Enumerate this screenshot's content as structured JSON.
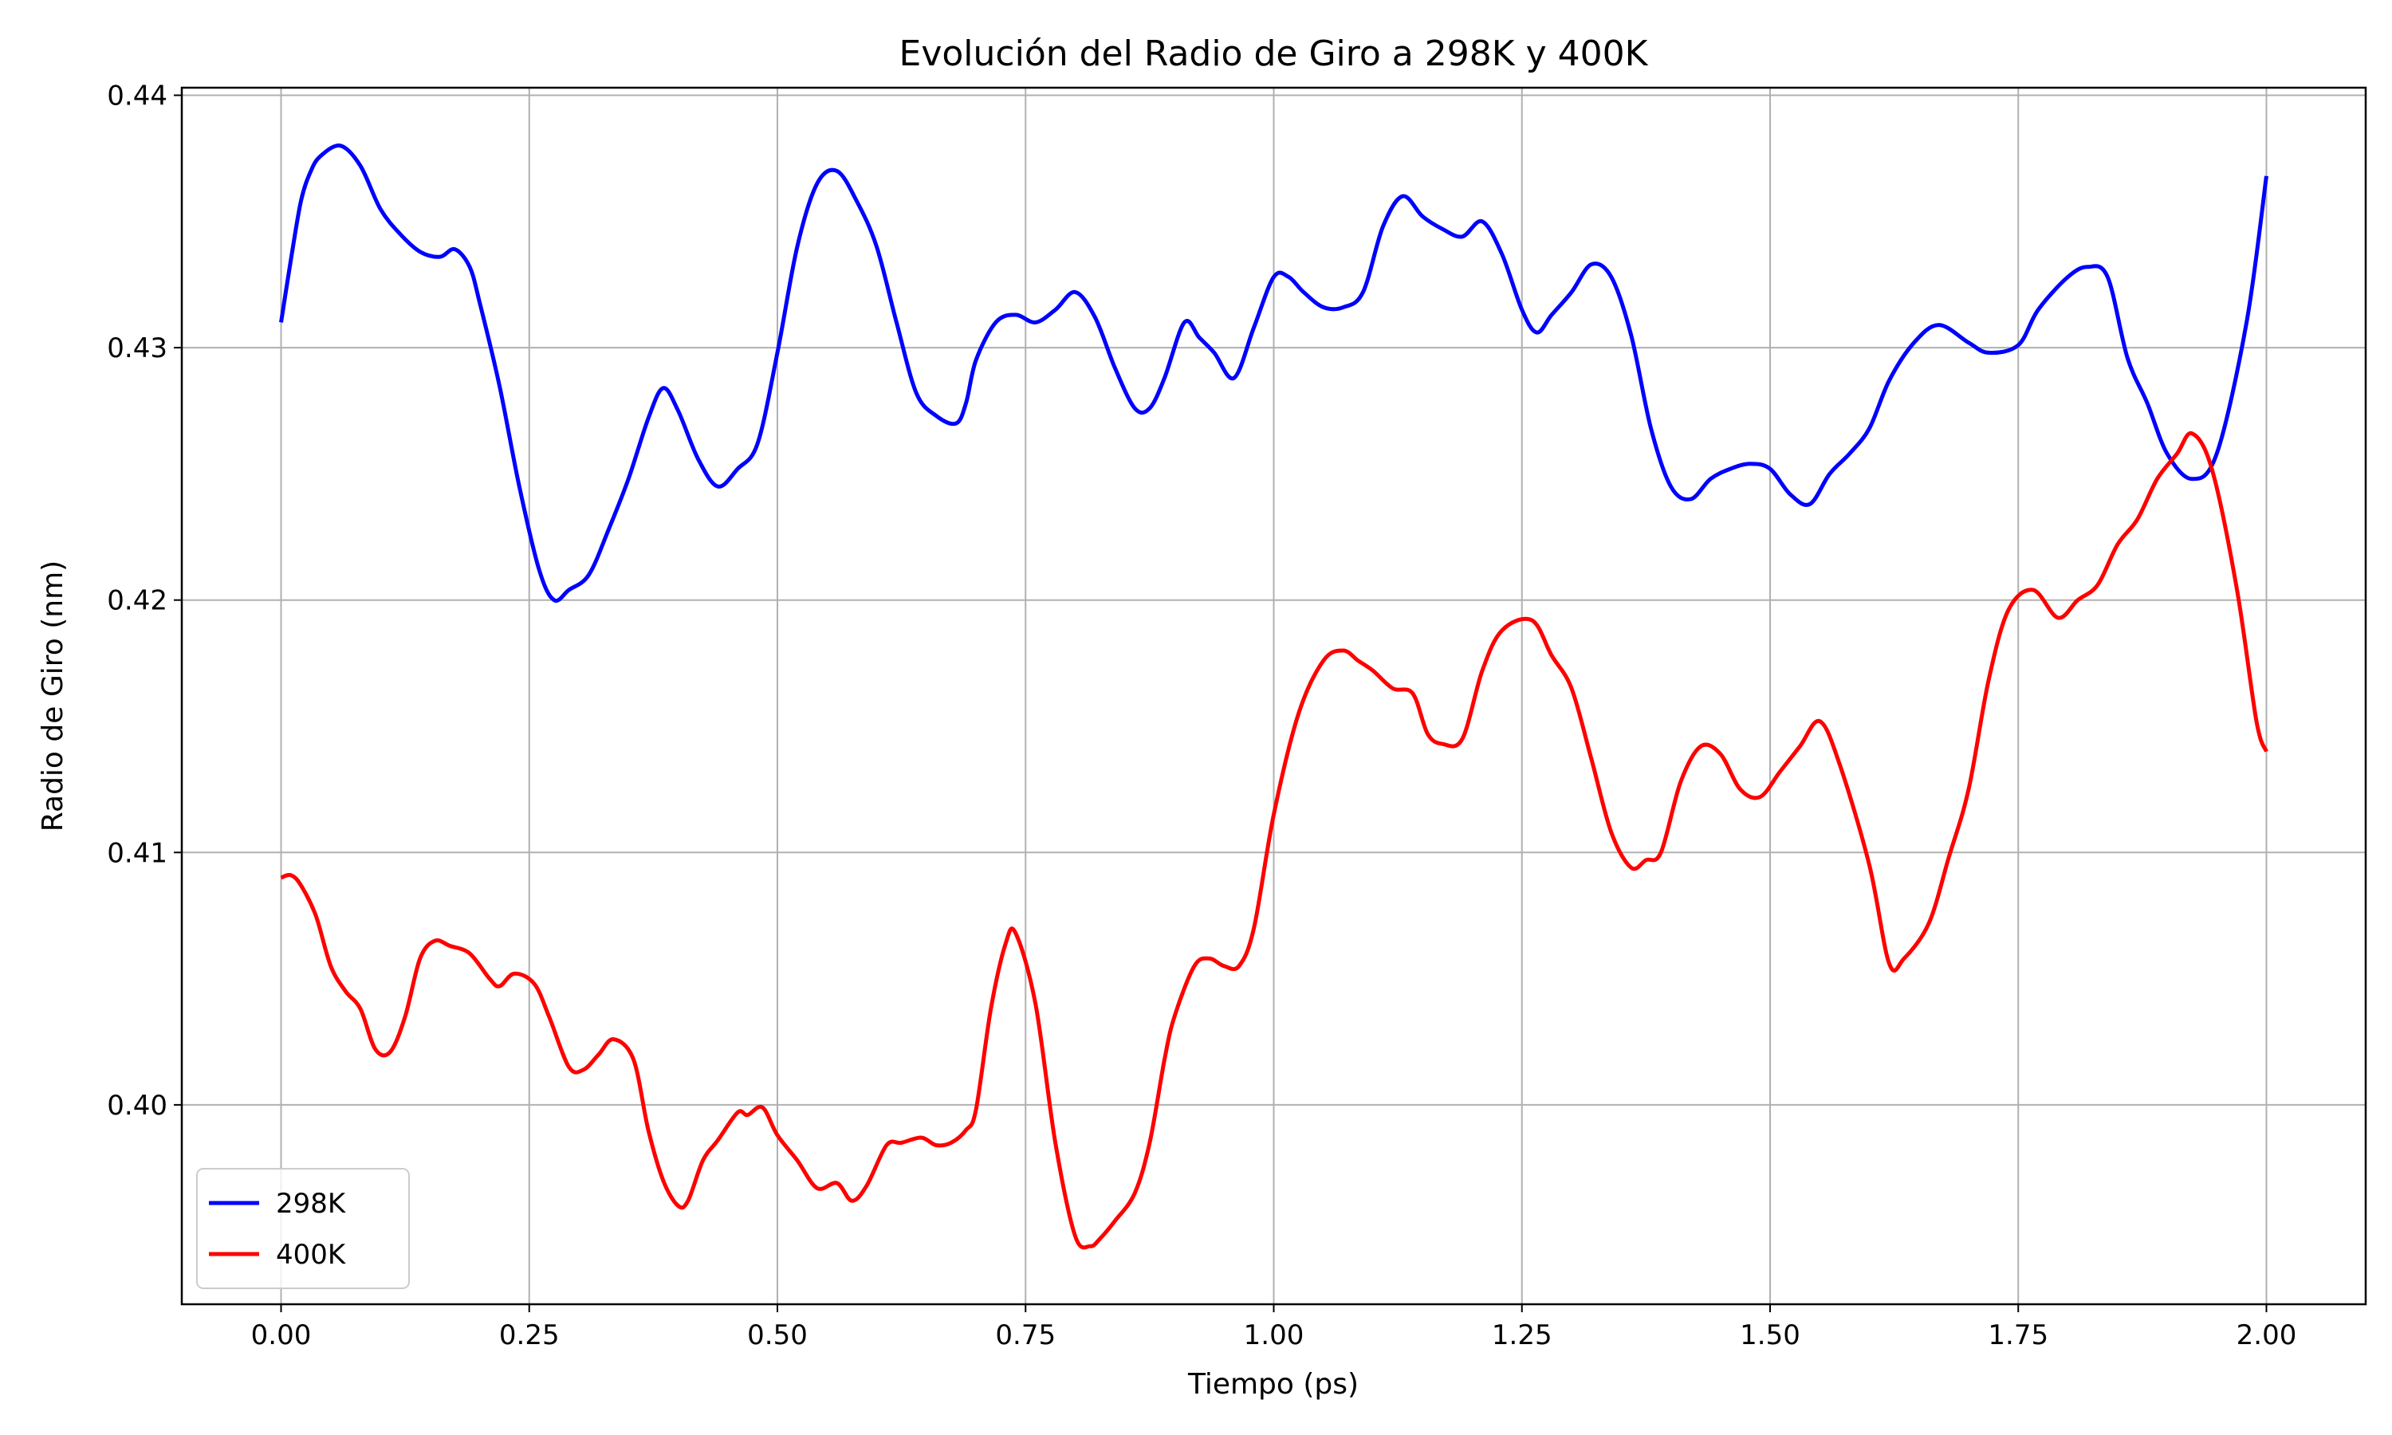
{
  "chart_data": {
    "type": "line",
    "title": "Evolución del Radio de Giro a 298K y 400K",
    "xlabel": "Tiempo (ps)",
    "ylabel": "Radio de Giro (nm)",
    "xlim": [
      -0.1,
      2.1
    ],
    "ylim": [
      0.3921,
      0.4403
    ],
    "xticks": [
      0.0,
      0.25,
      0.5,
      0.75,
      1.0,
      1.25,
      1.5,
      1.75,
      2.0
    ],
    "xtick_labels": [
      "0.00",
      "0.25",
      "0.50",
      "0.75",
      "1.00",
      "1.25",
      "1.50",
      "1.75",
      "2.00"
    ],
    "yticks": [
      0.4,
      0.41,
      0.42,
      0.43,
      0.44
    ],
    "ytick_labels": [
      "0.40",
      "0.41",
      "0.42",
      "0.43",
      "0.44"
    ],
    "grid": true,
    "legend": "lower-left",
    "series": [
      {
        "name": "298K",
        "color": "#0000ff",
        "x": [
          0.0,
          0.01,
          0.02,
          0.03,
          0.04,
          0.06,
          0.08,
          0.1,
          0.12,
          0.14,
          0.16,
          0.175,
          0.19,
          0.2,
          0.22,
          0.24,
          0.26,
          0.275,
          0.29,
          0.31,
          0.33,
          0.35,
          0.37,
          0.385,
          0.4,
          0.42,
          0.44,
          0.46,
          0.48,
          0.5,
          0.52,
          0.54,
          0.56,
          0.58,
          0.6,
          0.62,
          0.64,
          0.66,
          0.68,
          0.69,
          0.7,
          0.72,
          0.74,
          0.76,
          0.78,
          0.8,
          0.82,
          0.84,
          0.86,
          0.875,
          0.89,
          0.91,
          0.925,
          0.94,
          0.96,
          0.98,
          1.0,
          1.015,
          1.03,
          1.05,
          1.07,
          1.09,
          1.11,
          1.13,
          1.15,
          1.17,
          1.19,
          1.21,
          1.23,
          1.25,
          1.265,
          1.28,
          1.3,
          1.32,
          1.34,
          1.36,
          1.38,
          1.4,
          1.42,
          1.44,
          1.46,
          1.48,
          1.5,
          1.52,
          1.54,
          1.56,
          1.58,
          1.6,
          1.62,
          1.645,
          1.67,
          1.7,
          1.72,
          1.75,
          1.77,
          1.8,
          1.82,
          1.84,
          1.86,
          1.88,
          1.9,
          1.925,
          1.95,
          1.98,
          2.0
        ],
        "y": [
          0.431,
          0.4335,
          0.4358,
          0.437,
          0.4376,
          0.438,
          0.4372,
          0.4355,
          0.4345,
          0.4338,
          0.4336,
          0.4339,
          0.4332,
          0.4318,
          0.4285,
          0.4245,
          0.4212,
          0.42,
          0.4204,
          0.421,
          0.4228,
          0.4248,
          0.4272,
          0.4284,
          0.4275,
          0.4256,
          0.4245,
          0.4252,
          0.4262,
          0.4298,
          0.434,
          0.4365,
          0.437,
          0.4358,
          0.434,
          0.431,
          0.4282,
          0.4273,
          0.427,
          0.4278,
          0.4295,
          0.431,
          0.4313,
          0.431,
          0.4315,
          0.4322,
          0.4312,
          0.4292,
          0.4276,
          0.4276,
          0.4288,
          0.431,
          0.4304,
          0.4298,
          0.4288,
          0.4308,
          0.4328,
          0.4328,
          0.4322,
          0.4316,
          0.4316,
          0.4322,
          0.4348,
          0.436,
          0.4352,
          0.4347,
          0.4344,
          0.435,
          0.4337,
          0.4315,
          0.4306,
          0.4313,
          0.4322,
          0.4333,
          0.4328,
          0.4305,
          0.4268,
          0.4245,
          0.424,
          0.4248,
          0.4252,
          0.4254,
          0.4252,
          0.4242,
          0.4238,
          0.425,
          0.4258,
          0.4268,
          0.4287,
          0.4302,
          0.4309,
          0.4302,
          0.4298,
          0.4301,
          0.4315,
          0.4328,
          0.4332,
          0.4328,
          0.4296,
          0.4278,
          0.4258,
          0.4248,
          0.4258,
          0.431,
          0.4368
        ]
      },
      {
        "name": "400K",
        "color": "#ff0000",
        "x": [
          0.0,
          0.01,
          0.02,
          0.035,
          0.05,
          0.065,
          0.08,
          0.095,
          0.11,
          0.125,
          0.14,
          0.155,
          0.17,
          0.19,
          0.21,
          0.22,
          0.235,
          0.255,
          0.27,
          0.29,
          0.305,
          0.32,
          0.335,
          0.355,
          0.37,
          0.385,
          0.4,
          0.41,
          0.425,
          0.44,
          0.46,
          0.47,
          0.485,
          0.5,
          0.52,
          0.54,
          0.56,
          0.575,
          0.59,
          0.61,
          0.625,
          0.645,
          0.66,
          0.675,
          0.69,
          0.7,
          0.715,
          0.73,
          0.74,
          0.76,
          0.78,
          0.8,
          0.815,
          0.825,
          0.84,
          0.86,
          0.875,
          0.89,
          0.9,
          0.92,
          0.935,
          0.95,
          0.965,
          0.98,
          1.0,
          1.025,
          1.05,
          1.07,
          1.085,
          1.1,
          1.12,
          1.14,
          1.155,
          1.17,
          1.19,
          1.21,
          1.23,
          1.26,
          1.28,
          1.3,
          1.32,
          1.34,
          1.36,
          1.375,
          1.39,
          1.41,
          1.43,
          1.45,
          1.47,
          1.49,
          1.51,
          1.53,
          1.55,
          1.57,
          1.6,
          1.62,
          1.635,
          1.66,
          1.68,
          1.7,
          1.72,
          1.74,
          1.765,
          1.79,
          1.81,
          1.83,
          1.85,
          1.87,
          1.89,
          1.91,
          1.925,
          1.945,
          1.97,
          1.99,
          2.0
        ],
        "y": [
          0.409,
          0.4091,
          0.4087,
          0.4075,
          0.4055,
          0.4045,
          0.4038,
          0.4022,
          0.4021,
          0.4035,
          0.4058,
          0.4065,
          0.4063,
          0.406,
          0.405,
          0.4047,
          0.4052,
          0.4048,
          0.4035,
          0.4015,
          0.4014,
          0.402,
          0.4026,
          0.4018,
          0.399,
          0.397,
          0.396,
          0.3962,
          0.3978,
          0.3986,
          0.3997,
          0.3996,
          0.3999,
          0.3988,
          0.3978,
          0.3967,
          0.3969,
          0.3962,
          0.3968,
          0.3984,
          0.3985,
          0.3987,
          0.3984,
          0.3985,
          0.399,
          0.3998,
          0.4038,
          0.4064,
          0.4068,
          0.404,
          0.3985,
          0.3948,
          0.3944,
          0.3947,
          0.3954,
          0.3965,
          0.3985,
          0.4018,
          0.4035,
          0.4055,
          0.4058,
          0.4055,
          0.4055,
          0.407,
          0.4115,
          0.4155,
          0.4176,
          0.418,
          0.4176,
          0.4172,
          0.4165,
          0.4163,
          0.4147,
          0.4143,
          0.4145,
          0.4172,
          0.4188,
          0.4192,
          0.4178,
          0.4165,
          0.4137,
          0.4108,
          0.4094,
          0.4097,
          0.41,
          0.4128,
          0.4142,
          0.4139,
          0.4125,
          0.4122,
          0.4132,
          0.4142,
          0.4152,
          0.4135,
          0.4095,
          0.4056,
          0.4058,
          0.4072,
          0.4098,
          0.4125,
          0.4168,
          0.4196,
          0.4204,
          0.4193,
          0.42,
          0.4206,
          0.4222,
          0.4232,
          0.4248,
          0.4258,
          0.4266,
          0.4252,
          0.4205,
          0.4152,
          0.414
        ]
      }
    ]
  }
}
